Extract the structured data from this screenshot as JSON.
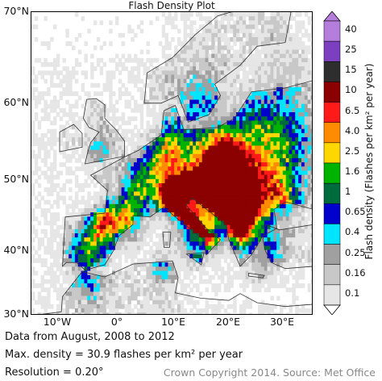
{
  "map": {
    "title": "Flash Density Plot",
    "lat_labels": [
      "70°N",
      "60°N",
      "50°N",
      "40°N",
      "30°N"
    ],
    "lon_labels": [
      "10°W",
      "0°",
      "10°E",
      "20°E",
      "30°E"
    ],
    "extent": {
      "lon_min": -15,
      "lon_max": 35,
      "lat_min": 30,
      "lat_max": 70
    },
    "colors": {
      "coastline": "#333333",
      "frame": "#000000"
    }
  },
  "colorbar": {
    "title": "Flash density (Flashes per km² per year)",
    "ticks": [
      "40",
      "25",
      "15",
      "10",
      "6.5",
      "4.0",
      "2.5",
      "1.6",
      "1",
      "0.65",
      "0.4",
      "0.25",
      "0.16",
      "0.1"
    ],
    "bins": [
      {
        "color": "#b57edc"
      },
      {
        "color": "#7b3fbf"
      },
      {
        "color": "#2e2e2e"
      },
      {
        "color": "#8b0000"
      },
      {
        "color": "#ff1a1a"
      },
      {
        "color": "#ff8c00"
      },
      {
        "color": "#ffd700"
      },
      {
        "color": "#00b300"
      },
      {
        "color": "#006b3c"
      },
      {
        "color": "#0000cd"
      },
      {
        "color": "#00e5ff"
      },
      {
        "color": "#a0a0a0"
      },
      {
        "color": "#c8c8c8"
      },
      {
        "color": "#e6e6e6"
      }
    ]
  },
  "info": {
    "data_range": "Data from August, 2008 to 2012",
    "max_density": "Max. density = 30.9 flashes per km² per year",
    "resolution": "Resolution = 0.20°"
  },
  "copyright": "Crown Copyright 2014. Source: Met Office"
}
